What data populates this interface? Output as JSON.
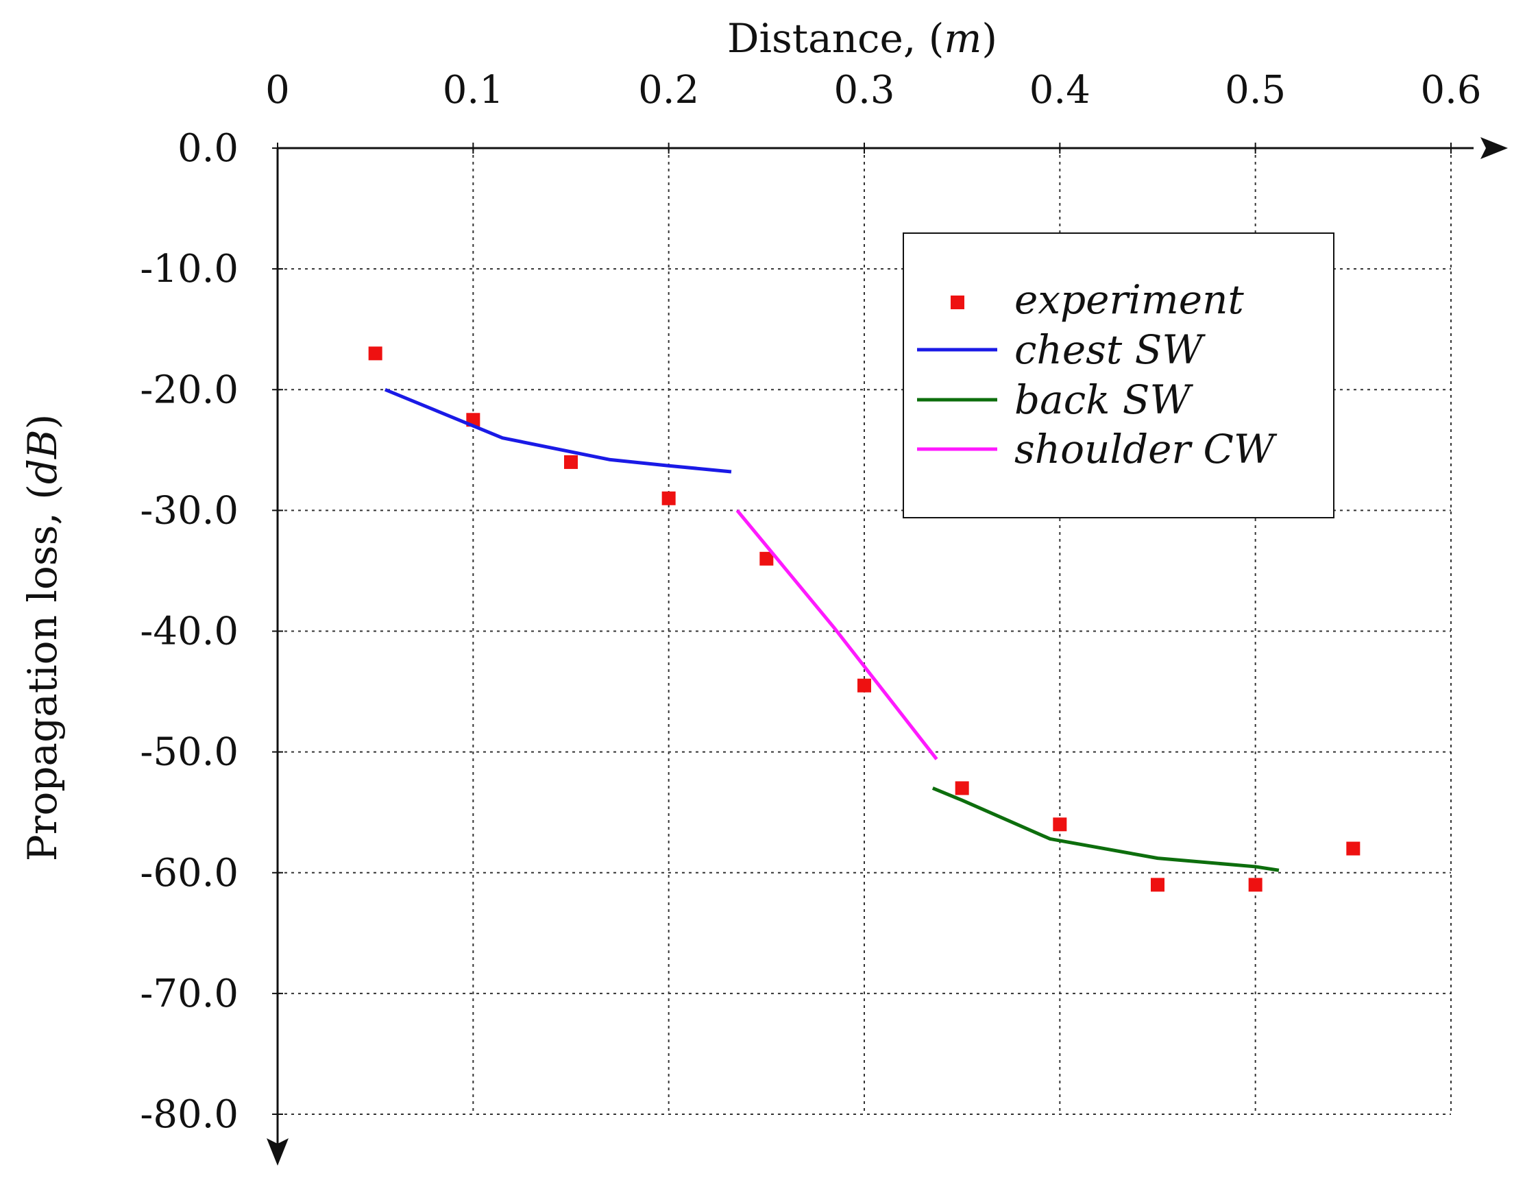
{
  "chart_data": {
    "type": "line",
    "title": "",
    "xlabel": "Distance, (",
    "xlabel_unit": "m",
    "xlabel_close": ")",
    "ylabel": "Propagation loss, (",
    "ylabel_unit": "dB",
    "ylabel_close": ")",
    "xlim": [
      0,
      0.6
    ],
    "ylim": [
      -80,
      0
    ],
    "x_ticks": [
      0,
      0.1,
      0.2,
      0.3,
      0.4,
      0.5,
      0.6
    ],
    "x_tick_labels": [
      "0",
      "0.1",
      "0.2",
      "0.3",
      "0.4",
      "0.5",
      "0.6"
    ],
    "y_ticks": [
      0,
      -10,
      -20,
      -30,
      -40,
      -50,
      -60,
      -70,
      -80
    ],
    "y_tick_labels": [
      "0.0",
      "-10.0",
      "-20.0",
      "-30.0",
      "-40.0",
      "-50.0",
      "-60.0",
      "-70.0",
      "-80.0"
    ],
    "x_axis_position": "top",
    "grid": true,
    "legend_position": "top-right",
    "series": [
      {
        "name": "experiment",
        "kind": "scatter",
        "marker": "square",
        "color": "#ee1111",
        "x": [
          0.05,
          0.1,
          0.15,
          0.2,
          0.25,
          0.3,
          0.35,
          0.4,
          0.45,
          0.5,
          0.55
        ],
        "y": [
          -17,
          -22.5,
          -26,
          -29,
          -34,
          -44.5,
          -53,
          -56,
          -61,
          -61,
          -58
        ]
      },
      {
        "name": "chest SW",
        "kind": "line",
        "color": "#1a1ae6",
        "x": [
          0.055,
          0.1,
          0.115,
          0.17,
          0.2,
          0.232
        ],
        "y": [
          -20,
          -23,
          -24,
          -25.8,
          -26.3,
          -26.8
        ]
      },
      {
        "name": "back SW",
        "kind": "line",
        "color": "#0d6e0d",
        "x": [
          0.335,
          0.35,
          0.395,
          0.45,
          0.5,
          0.512
        ],
        "y": [
          -53,
          -54,
          -57.2,
          -58.8,
          -59.5,
          -59.8
        ]
      },
      {
        "name": "shoulder CW",
        "kind": "line",
        "color": "#ff1aff",
        "x": [
          0.235,
          0.285,
          0.337
        ],
        "y": [
          -30,
          -39.8,
          -50.6
        ]
      }
    ]
  }
}
